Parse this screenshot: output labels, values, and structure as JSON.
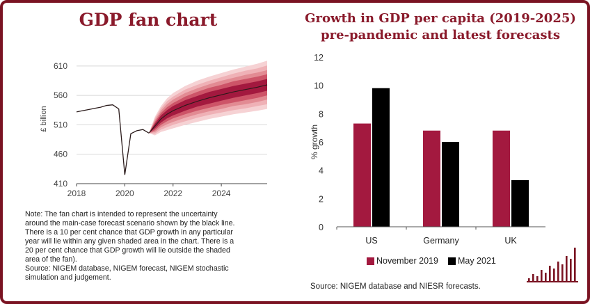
{
  "left": {
    "title": "GDP fan chart",
    "note_lines": [
      "Note: The fan chart is intended to represent the uncertainty",
      "around the main-case forecast scenario shown by the black line.",
      "There is a 10 per cent chance that GDP growth in any particular",
      "year will lie within any given shaded area in the chart. There is a",
      "20 per cent chance that GDP growth will lie outside the shaded",
      "area of the fan).",
      "Source: NIGEM database, NIGEM forecast, NIGEM stochastic",
      "simulation and judgement."
    ]
  },
  "right": {
    "title_line1": "Growth in GDP per capita (2019-2025)",
    "title_line2": "pre-pandemic and latest forecasts",
    "source": "Source: NIGEM database and NIESR forecasts."
  },
  "colors": {
    "brand": "#7a1322",
    "title": "#8a1a2b",
    "november": "#a3193f",
    "may": "#000000",
    "fan_bands": [
      "#f6d2d4",
      "#efb1b6",
      "#e28b93",
      "#cd5468",
      "#a3193f"
    ]
  },
  "chart_data": [
    {
      "type": "line",
      "ylabel": "£ billion",
      "xlabel": "",
      "xlim": [
        2018,
        2025.9
      ],
      "ylim": [
        410,
        630
      ],
      "x_ticks": [
        "2018",
        "2020",
        "2022",
        "2024"
      ],
      "y_ticks": [
        "410",
        "460",
        "510",
        "560",
        "610"
      ],
      "grid": "horizontal",
      "series": [
        {
          "kind": "history",
          "x": [
            2018.0,
            2018.25,
            2018.5,
            2018.75,
            2019.0,
            2019.25,
            2019.5,
            2019.75,
            2020.0,
            2020.25,
            2020.5,
            2020.75,
            2021.0
          ],
          "y": [
            532,
            534,
            536,
            538,
            540,
            543,
            544,
            537,
            425,
            495,
            500,
            502,
            496
          ]
        },
        {
          "kind": "central-forecast",
          "x": [
            2021.0,
            2021.25,
            2021.5,
            2021.75,
            2022.0,
            2022.5,
            2023.0,
            2023.5,
            2024.0,
            2024.5,
            2025.0,
            2025.5,
            2025.9
          ],
          "y": [
            496,
            508,
            520,
            528,
            534,
            543,
            550,
            556,
            561,
            566,
            570,
            574,
            578
          ]
        }
      ],
      "fan": {
        "x": [
          2021.0,
          2021.25,
          2021.5,
          2021.75,
          2022.0,
          2022.5,
          2023.0,
          2023.5,
          2024.0,
          2024.5,
          2025.0,
          2025.5,
          2025.9
        ],
        "half_widths": [
          [
            0,
            4,
            6,
            7,
            8,
            9,
            9,
            10,
            10,
            10,
            10,
            10,
            10
          ],
          [
            0,
            7,
            10,
            12,
            13,
            15,
            16,
            17,
            17,
            18,
            18,
            18,
            18
          ],
          [
            0,
            10,
            14,
            17,
            19,
            21,
            22,
            23,
            24,
            24,
            25,
            25,
            25
          ],
          [
            0,
            13,
            18,
            22,
            24,
            27,
            28,
            29,
            30,
            31,
            32,
            32,
            33
          ],
          [
            0,
            16,
            22,
            27,
            30,
            33,
            35,
            36,
            37,
            38,
            39,
            40,
            41
          ]
        ]
      }
    },
    {
      "type": "bar",
      "categories": [
        "US",
        "Germany",
        "UK"
      ],
      "ylabel": "% growth",
      "xlabel": "",
      "ylim": [
        0,
        12
      ],
      "y_ticks": [
        "0",
        "2",
        "4",
        "6",
        "8",
        "10",
        "12"
      ],
      "legend": "bottom",
      "series": [
        {
          "name": "November 2019",
          "values": [
            7.3,
            6.8,
            6.8
          ]
        },
        {
          "name": "May 2021",
          "values": [
            9.8,
            6.0,
            3.3
          ]
        }
      ]
    }
  ]
}
